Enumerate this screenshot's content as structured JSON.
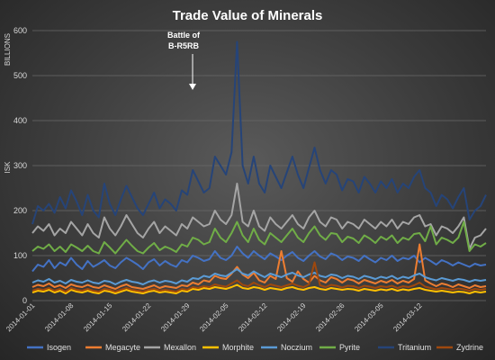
{
  "chart_data": {
    "type": "line",
    "title": "Trade Value of Minerals",
    "ylabel_unit": "BILLIONS",
    "ylabel": "ISK",
    "ylim": [
      0,
      600
    ],
    "yticks": [
      0,
      100,
      200,
      300,
      400,
      500,
      600
    ],
    "grid": true,
    "legend_position": "bottom",
    "xticks": [
      "2014-01-01",
      "2014-01-08",
      "2014-01-15",
      "2014-01-22",
      "2014-01-29",
      "2014-02-05",
      "2014-02-12",
      "2014-02-19",
      "2014-02-26",
      "2014-03-05",
      "2014-03-12"
    ],
    "annotation": {
      "text_line1": "Battle of",
      "text_line2": "B-R5RB",
      "x": 28,
      "y": 560
    },
    "x_start": "2014-01-01",
    "series": [
      {
        "name": "Isogen",
        "color": "#4472c4",
        "values": [
          65,
          80,
          75,
          90,
          72,
          85,
          78,
          95,
          80,
          70,
          88,
          75,
          82,
          90,
          78,
          72,
          85,
          95,
          88,
          80,
          70,
          85,
          92,
          78,
          88,
          80,
          75,
          90,
          85,
          100,
          95,
          88,
          92,
          110,
          95,
          90,
          100,
          120,
          105,
          95,
          110,
          100,
          92,
          105,
          98,
          90,
          100,
          108,
          95,
          88,
          100,
          110,
          98,
          92,
          105,
          100,
          90,
          98,
          95,
          88,
          100,
          92,
          85,
          95,
          90,
          100,
          88,
          95,
          92,
          100,
          85,
          95,
          88,
          80,
          90,
          85,
          78,
          85,
          80,
          75,
          82,
          78,
          80
        ]
      },
      {
        "name": "Megacyte",
        "color": "#ed7d31",
        "values": [
          30,
          35,
          32,
          38,
          30,
          34,
          28,
          36,
          32,
          30,
          35,
          30,
          28,
          34,
          30,
          26,
          32,
          36,
          30,
          28,
          26,
          30,
          34,
          28,
          32,
          30,
          28,
          34,
          32,
          40,
          36,
          45,
          42,
          55,
          50,
          48,
          60,
          75,
          58,
          50,
          62,
          45,
          40,
          55,
          48,
          110,
          50,
          42,
          65,
          48,
          40,
          55,
          45,
          40,
          52,
          48,
          40,
          48,
          45,
          38,
          46,
          42,
          38,
          44,
          40,
          46,
          38,
          44,
          40,
          48,
          125,
          45,
          38,
          32,
          38,
          35,
          30,
          36,
          32,
          28,
          34,
          30,
          32
        ]
      },
      {
        "name": "Mexallon",
        "color": "#a5a5a5",
        "values": [
          150,
          165,
          155,
          170,
          145,
          160,
          150,
          175,
          160,
          145,
          170,
          150,
          140,
          185,
          160,
          145,
          165,
          190,
          170,
          150,
          140,
          160,
          175,
          150,
          165,
          155,
          145,
          170,
          160,
          185,
          175,
          165,
          170,
          200,
          180,
          170,
          190,
          260,
          175,
          165,
          200,
          165,
          155,
          185,
          170,
          160,
          175,
          190,
          170,
          160,
          185,
          200,
          175,
          165,
          185,
          180,
          160,
          175,
          170,
          160,
          180,
          170,
          160,
          175,
          165,
          180,
          160,
          175,
          170,
          185,
          190,
          165,
          170,
          145,
          165,
          160,
          150,
          165,
          185,
          115,
          140,
          145,
          160
        ]
      },
      {
        "name": "Morphite",
        "color": "#ffc000",
        "values": [
          18,
          22,
          20,
          24,
          18,
          22,
          16,
          24,
          20,
          18,
          22,
          18,
          16,
          22,
          20,
          16,
          20,
          24,
          20,
          18,
          16,
          20,
          22,
          18,
          20,
          18,
          16,
          22,
          20,
          26,
          24,
          28,
          26,
          30,
          28,
          26,
          30,
          35,
          28,
          26,
          30,
          28,
          24,
          28,
          26,
          24,
          28,
          30,
          26,
          24,
          28,
          30,
          26,
          24,
          28,
          26,
          24,
          26,
          25,
          22,
          26,
          24,
          22,
          25,
          23,
          26,
          22,
          25,
          23,
          26,
          28,
          24,
          22,
          20,
          22,
          20,
          18,
          20,
          19,
          16,
          20,
          18,
          20
        ]
      },
      {
        "name": "Noczium",
        "color": "#5b9bd5",
        "values": [
          40,
          45,
          42,
          48,
          40,
          44,
          38,
          46,
          42,
          40,
          45,
          40,
          38,
          44,
          42,
          36,
          42,
          46,
          42,
          40,
          36,
          42,
          45,
          40,
          44,
          42,
          38,
          45,
          42,
          50,
          48,
          55,
          52,
          60,
          56,
          54,
          62,
          70,
          60,
          56,
          65,
          58,
          52,
          60,
          56,
          52,
          58,
          62,
          56,
          52,
          58,
          62,
          55,
          52,
          58,
          56,
          50,
          55,
          53,
          48,
          55,
          52,
          48,
          53,
          50,
          55,
          48,
          53,
          50,
          56,
          60,
          52,
          48,
          45,
          50,
          47,
          44,
          48,
          46,
          42,
          46,
          44,
          46
        ]
      },
      {
        "name": "Pyrite",
        "color": "#70ad47",
        "values": [
          110,
          120,
          115,
          125,
          110,
          120,
          108,
          125,
          118,
          110,
          122,
          110,
          105,
          130,
          118,
          105,
          120,
          135,
          122,
          110,
          105,
          118,
          128,
          112,
          120,
          115,
          108,
          125,
          120,
          140,
          135,
          125,
          130,
          160,
          140,
          130,
          150,
          175,
          145,
          130,
          160,
          135,
          125,
          150,
          140,
          130,
          145,
          160,
          140,
          130,
          150,
          165,
          145,
          135,
          150,
          148,
          130,
          142,
          138,
          128,
          145,
          138,
          128,
          142,
          135,
          145,
          128,
          140,
          135,
          148,
          150,
          132,
          165,
          125,
          140,
          135,
          128,
          140,
          175,
          110,
          125,
          120,
          128
        ]
      },
      {
        "name": "Tritanium",
        "color": "#264478",
        "values": [
          170,
          210,
          200,
          215,
          195,
          230,
          205,
          245,
          220,
          190,
          235,
          200,
          185,
          260,
          215,
          190,
          225,
          255,
          230,
          205,
          190,
          215,
          240,
          205,
          225,
          215,
          200,
          245,
          235,
          290,
          265,
          240,
          250,
          320,
          300,
          280,
          330,
          575,
          300,
          260,
          320,
          260,
          240,
          300,
          275,
          250,
          285,
          320,
          280,
          250,
          295,
          340,
          290,
          260,
          290,
          280,
          245,
          270,
          265,
          240,
          275,
          260,
          240,
          265,
          250,
          270,
          240,
          260,
          250,
          275,
          290,
          250,
          240,
          210,
          235,
          225,
          205,
          230,
          250,
          180,
          200,
          210,
          235
        ]
      },
      {
        "name": "Zydrine",
        "color": "#9e480e",
        "values": [
          22,
          26,
          24,
          28,
          22,
          26,
          20,
          28,
          24,
          22,
          26,
          22,
          20,
          26,
          24,
          20,
          24,
          28,
          24,
          22,
          20,
          24,
          26,
          22,
          24,
          22,
          20,
          26,
          24,
          30,
          28,
          32,
          30,
          36,
          33,
          31,
          38,
          45,
          35,
          32,
          40,
          34,
          30,
          36,
          33,
          30,
          34,
          38,
          33,
          30,
          36,
          85,
          34,
          30,
          35,
          33,
          29,
          33,
          32,
          28,
          33,
          31,
          28,
          32,
          30,
          33,
          28,
          32,
          30,
          34,
          40,
          31,
          28,
          25,
          28,
          26,
          24,
          27,
          25,
          22,
          26,
          24,
          26
        ]
      }
    ]
  }
}
